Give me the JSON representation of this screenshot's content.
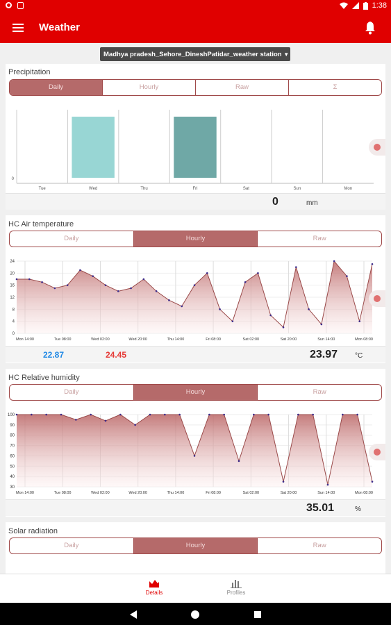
{
  "status_bar": {
    "time": "1:38"
  },
  "app_bar": {
    "title": "Weather"
  },
  "station": {
    "name": "Madhya pradesh_Sehore_DineshPatidar_weather station"
  },
  "precipitation": {
    "title": "Precipitation",
    "tabs": [
      {
        "label": "Daily",
        "active": true
      },
      {
        "label": "Hourly",
        "active": false
      },
      {
        "label": "Raw",
        "active": false
      },
      {
        "label": "Σ",
        "active": false
      }
    ],
    "value": "0",
    "unit": "mm",
    "chart_data": {
      "type": "bar",
      "categories": [
        "Tue",
        "Wed",
        "Thu",
        "Fri",
        "Sat",
        "Sun",
        "Mon"
      ],
      "values": [
        0,
        0,
        0,
        0,
        0,
        0,
        0
      ],
      "y_ticks": [
        "0"
      ],
      "highlight_colors": [
        "#ffffff",
        "#98d6d4",
        "#ffffff",
        "#6fa8a6",
        "#ffffff",
        "#ffffff",
        "#ffffff"
      ]
    }
  },
  "air_temperature": {
    "title": "HC Air temperature",
    "tabs": [
      {
        "label": "Daily",
        "active": false
      },
      {
        "label": "Hourly",
        "active": true
      },
      {
        "label": "Raw",
        "active": false
      }
    ],
    "min": "22.87",
    "max": "24.45",
    "value": "23.97",
    "unit": "°C",
    "chart_data": {
      "type": "area",
      "x_labels": [
        "Mon 14:00",
        "Tue 08:00",
        "Wed 02:00",
        "Wed 20:00",
        "Thu 14:00",
        "Fri 08:00",
        "Sat 02:00",
        "Sat 20:00",
        "Sun 14:00",
        "Mon 08:00"
      ],
      "y_ticks": [
        0,
        4,
        8,
        12,
        16,
        20,
        24
      ],
      "ylim": [
        0,
        24
      ],
      "values": [
        18,
        18,
        17,
        15,
        16,
        21,
        19,
        16,
        14,
        15,
        18,
        14,
        11,
        9,
        16,
        20,
        8,
        4,
        17,
        20,
        6,
        2,
        22,
        8,
        3,
        24,
        19,
        4,
        23
      ]
    }
  },
  "humidity": {
    "title": "HC Relative humidity",
    "tabs": [
      {
        "label": "Daily",
        "active": false
      },
      {
        "label": "Hourly",
        "active": true
      },
      {
        "label": "Raw",
        "active": false
      }
    ],
    "value": "35.01",
    "unit": "%",
    "chart_data": {
      "type": "area",
      "x_labels": [
        "Mon 14:00",
        "Tue 08:00",
        "Wed 02:00",
        "Wed 20:00",
        "Thu 14:00",
        "Fri 08:00",
        "Sat 02:00",
        "Sat 20:00",
        "Sun 14:00",
        "Mon 08:00"
      ],
      "y_ticks": [
        30,
        40,
        50,
        60,
        70,
        80,
        90,
        100
      ],
      "ylim": [
        30,
        100
      ],
      "values": [
        100,
        100,
        100,
        100,
        95,
        100,
        94,
        100,
        90,
        100,
        100,
        100,
        60,
        100,
        100,
        55,
        100,
        100,
        35,
        100,
        100,
        32,
        100,
        100,
        35
      ]
    }
  },
  "solar": {
    "title": "Solar radiation",
    "tabs": [
      {
        "label": "Daily",
        "active": false
      },
      {
        "label": "Hourly",
        "active": true
      },
      {
        "label": "Raw",
        "active": false
      }
    ]
  },
  "bottom_nav": {
    "items": [
      {
        "label": "Details",
        "active": true
      },
      {
        "label": "Profiles",
        "active": false
      }
    ]
  }
}
